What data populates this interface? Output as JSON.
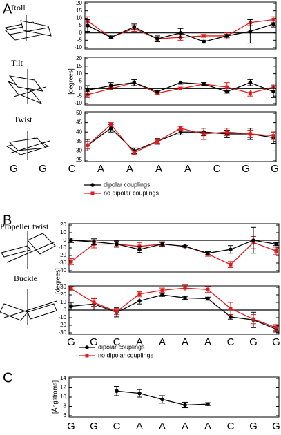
{
  "panels": [
    "A",
    "B",
    "C"
  ],
  "chart_data": [
    {
      "type": "line",
      "title": "Roll",
      "ylim": [
        -10,
        20
      ],
      "yticks": [
        -10,
        -5,
        0,
        5,
        10,
        15,
        20
      ],
      "zero_line": true,
      "series": [
        {
          "color": "#e31a1c",
          "marker": "square",
          "values": [
            8,
            -3,
            3,
            -4,
            -3,
            -2,
            -2,
            7,
            9
          ],
          "errors": [
            3,
            1,
            2,
            2,
            2,
            1,
            2,
            2,
            2
          ]
        },
        {
          "color": "#000000",
          "marker": "circle",
          "values": [
            5,
            -3,
            4,
            -4,
            0,
            -6,
            -2,
            1,
            6
          ],
          "errors": [
            4,
            1,
            2,
            2,
            3,
            1,
            1,
            8,
            2
          ]
        }
      ]
    },
    {
      "type": "line",
      "title": "Tilt",
      "ylabel": "[degrees]",
      "ylim": [
        -10,
        20
      ],
      "yticks": [
        -10,
        -5,
        0,
        5,
        10,
        15,
        20
      ],
      "zero_line": true,
      "series": [
        {
          "color": "#e31a1c",
          "marker": "square",
          "values": [
            -4,
            0,
            4,
            -3,
            0,
            3,
            1,
            -3,
            1
          ],
          "errors": [
            2,
            1,
            2,
            1,
            1,
            1,
            3,
            2,
            2
          ]
        },
        {
          "color": "#000000",
          "marker": "circle",
          "values": [
            -1,
            2,
            4,
            -2,
            4,
            3,
            -2,
            4,
            -2
          ],
          "errors": [
            3,
            2,
            2,
            1,
            1,
            1,
            1,
            2,
            4
          ]
        }
      ]
    },
    {
      "type": "line",
      "title": "Twist",
      "ylim": [
        25,
        50
      ],
      "yticks": [
        25,
        30,
        35,
        40,
        45,
        50
      ],
      "bases": [
        "G",
        "G",
        "C",
        "A",
        "A",
        "A",
        "A",
        "C",
        "G",
        "G"
      ],
      "series": [
        {
          "name": "dipolar couplings",
          "color": "#000000",
          "marker": "circle",
          "values": [
            33,
            42,
            30,
            35,
            40,
            40,
            39,
            39,
            37
          ],
          "errors": [
            3,
            2,
            1.5,
            1.5,
            1.5,
            2,
            2,
            3,
            3
          ]
        },
        {
          "name": "no dipolar couplings",
          "color": "#e31a1c",
          "marker": "square",
          "values": [
            33,
            44,
            29,
            35,
            42,
            39,
            40,
            39,
            38
          ],
          "errors": [
            2,
            1,
            1,
            1,
            1,
            3,
            2,
            2,
            2
          ]
        }
      ]
    },
    {
      "type": "line",
      "title": "Propeller twist",
      "ylabel": "[degrees]",
      "ylim": [
        -40,
        20
      ],
      "yticks": [
        -40,
        -30,
        -20,
        -10,
        0,
        10,
        20
      ],
      "zero_line": true,
      "series": [
        {
          "color": "#e31a1c",
          "marker": "square",
          "values": [
            -28,
            -5,
            -5,
            -8,
            -5,
            -8,
            -18,
            -32,
            -3,
            -14
          ],
          "errors": [
            4,
            5,
            3,
            5,
            2,
            1,
            3,
            4,
            8,
            5
          ]
        },
        {
          "color": "#000000",
          "marker": "circle",
          "values": [
            0,
            -2,
            -5,
            -12,
            -5,
            -8,
            -17,
            -12,
            0,
            -5
          ],
          "errors": [
            3,
            4,
            4,
            4,
            3,
            1,
            2,
            5,
            17,
            2
          ]
        }
      ]
    },
    {
      "type": "line",
      "title": "Buckle",
      "ylim": [
        -30,
        30
      ],
      "yticks": [
        -30,
        -20,
        -10,
        0,
        10,
        20,
        30
      ],
      "zero_line": true,
      "categories": [
        "G",
        "G",
        "C",
        "A",
        "A",
        "A",
        "A",
        "C",
        "G",
        "G"
      ],
      "series": [
        {
          "name": "dipolar couplings",
          "color": "#000000",
          "marker": "circle",
          "values": [
            5,
            8,
            -3,
            12,
            20,
            16,
            15,
            -9,
            -13,
            -25
          ],
          "errors": [
            5,
            8,
            6,
            4,
            2,
            2,
            2,
            3,
            10,
            4
          ]
        },
        {
          "name": "no dipolar couplings",
          "color": "#e31a1c",
          "marker": "square",
          "values": [
            28,
            10,
            -2,
            21,
            26,
            29,
            27,
            2,
            -12,
            -23
          ],
          "errors": [
            3,
            5,
            4,
            3,
            3,
            4,
            4,
            8,
            6,
            4
          ]
        }
      ]
    },
    {
      "type": "line",
      "ylabel": "[Ångstroms]",
      "ylim": [
        6,
        14
      ],
      "yticks": [
        6,
        8,
        10,
        12,
        14
      ],
      "categories": [
        "G",
        "G",
        "C",
        "A",
        "A",
        "A",
        "A",
        "C",
        "G",
        "G"
      ],
      "series": [
        {
          "color": "#000000",
          "marker": "circle",
          "values": [
            null,
            null,
            11.3,
            10.8,
            9.5,
            8.3,
            8.5,
            null,
            null,
            null
          ],
          "errors": [
            null,
            null,
            1,
            0.8,
            0.8,
            0.6,
            0.3,
            null,
            null,
            null
          ]
        }
      ]
    }
  ]
}
